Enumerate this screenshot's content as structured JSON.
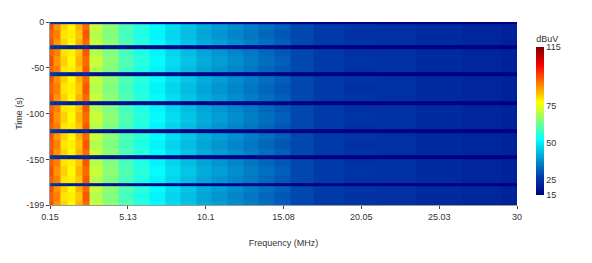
{
  "chart_data": {
    "type": "heatmap",
    "x_label": "Frequency (MHz)",
    "y_label": "Time (s)",
    "color": "Jet",
    "x": [
      0.15,
      0.6,
      1.0,
      1.5,
      2.0,
      2.4,
      3,
      4,
      5,
      6,
      7,
      8,
      9,
      10,
      11,
      12,
      13,
      14,
      15,
      16,
      18,
      20,
      22,
      25,
      28,
      30
    ],
    "y": [
      0,
      -4,
      -14,
      -23,
      -27,
      -31,
      -43,
      -53,
      -57,
      -61,
      -73,
      -84,
      -88,
      -92,
      -104,
      -115,
      -119,
      -123,
      -134,
      -143,
      -147,
      -151,
      -163,
      -173,
      -177,
      -181,
      -190,
      -199
    ],
    "z": [
      [
        28,
        25,
        23,
        21,
        22,
        24,
        19,
        18,
        18,
        17,
        17,
        17,
        16,
        16,
        16,
        16,
        16,
        16,
        16,
        15,
        15,
        15,
        15,
        15,
        15,
        15
      ],
      [
        95,
        88,
        82,
        78,
        85,
        92,
        72,
        66,
        60,
        56,
        52,
        48,
        45,
        42,
        40,
        38,
        36,
        34,
        32,
        29,
        27,
        26,
        25,
        24,
        23,
        22
      ],
      [
        93,
        90,
        80,
        79,
        83,
        94,
        70,
        65,
        59,
        55,
        51,
        47,
        44,
        41,
        39,
        37,
        35,
        33,
        31,
        29,
        27,
        25,
        25,
        24,
        23,
        22
      ],
      [
        95,
        88,
        82,
        78,
        85,
        92,
        72,
        66,
        60,
        56,
        52,
        48,
        45,
        42,
        40,
        38,
        36,
        34,
        32,
        29,
        27,
        26,
        25,
        24,
        23,
        22
      ],
      [
        28,
        25,
        23,
        21,
        22,
        24,
        19,
        18,
        18,
        17,
        17,
        17,
        16,
        16,
        16,
        16,
        16,
        16,
        16,
        15,
        15,
        15,
        15,
        15,
        15,
        15
      ],
      [
        93,
        90,
        80,
        79,
        83,
        94,
        70,
        65,
        59,
        55,
        51,
        47,
        44,
        41,
        39,
        37,
        35,
        33,
        31,
        29,
        27,
        25,
        25,
        24,
        23,
        22
      ],
      [
        95,
        88,
        82,
        78,
        85,
        92,
        72,
        66,
        60,
        56,
        52,
        48,
        45,
        42,
        40,
        38,
        36,
        34,
        32,
        29,
        27,
        26,
        25,
        24,
        23,
        22
      ],
      [
        93,
        90,
        80,
        79,
        83,
        94,
        70,
        65,
        59,
        55,
        51,
        47,
        44,
        41,
        39,
        37,
        35,
        33,
        31,
        29,
        27,
        25,
        25,
        24,
        23,
        22
      ],
      [
        28,
        25,
        23,
        21,
        22,
        24,
        19,
        18,
        18,
        17,
        17,
        17,
        16,
        16,
        16,
        16,
        16,
        16,
        16,
        15,
        15,
        15,
        15,
        15,
        15,
        15
      ],
      [
        95,
        88,
        82,
        78,
        85,
        92,
        72,
        66,
        60,
        56,
        52,
        48,
        45,
        42,
        40,
        38,
        36,
        34,
        32,
        29,
        27,
        26,
        25,
        24,
        23,
        22
      ],
      [
        93,
        90,
        80,
        79,
        83,
        94,
        70,
        65,
        59,
        55,
        51,
        47,
        44,
        41,
        39,
        37,
        35,
        33,
        31,
        29,
        27,
        25,
        25,
        24,
        23,
        22
      ],
      [
        95,
        88,
        82,
        78,
        85,
        92,
        72,
        66,
        60,
        56,
        52,
        48,
        45,
        42,
        40,
        38,
        36,
        34,
        32,
        29,
        27,
        26,
        25,
        24,
        23,
        22
      ],
      [
        28,
        25,
        23,
        21,
        22,
        24,
        19,
        18,
        18,
        17,
        17,
        17,
        16,
        16,
        16,
        16,
        16,
        16,
        16,
        15,
        15,
        15,
        15,
        15,
        15,
        15
      ],
      [
        93,
        90,
        80,
        79,
        83,
        94,
        70,
        65,
        59,
        55,
        51,
        47,
        44,
        41,
        39,
        37,
        35,
        33,
        31,
        29,
        27,
        25,
        25,
        24,
        23,
        22
      ],
      [
        95,
        88,
        82,
        78,
        85,
        92,
        72,
        66,
        60,
        56,
        52,
        48,
        45,
        42,
        40,
        38,
        36,
        34,
        32,
        29,
        27,
        26,
        25,
        24,
        23,
        22
      ],
      [
        93,
        90,
        80,
        79,
        83,
        94,
        70,
        65,
        59,
        55,
        51,
        47,
        44,
        41,
        39,
        37,
        35,
        33,
        31,
        29,
        27,
        25,
        25,
        24,
        23,
        22
      ],
      [
        28,
        25,
        23,
        21,
        22,
        24,
        19,
        18,
        18,
        17,
        17,
        17,
        16,
        16,
        16,
        16,
        16,
        16,
        16,
        15,
        15,
        15,
        15,
        15,
        15,
        15
      ],
      [
        95,
        88,
        82,
        78,
        85,
        92,
        72,
        66,
        60,
        56,
        52,
        48,
        45,
        42,
        40,
        38,
        36,
        34,
        32,
        29,
        27,
        26,
        25,
        24,
        23,
        22
      ],
      [
        93,
        90,
        80,
        79,
        83,
        94,
        70,
        65,
        59,
        55,
        51,
        47,
        44,
        41,
        39,
        37,
        35,
        33,
        31,
        29,
        27,
        25,
        25,
        24,
        23,
        22
      ],
      [
        95,
        88,
        82,
        78,
        85,
        92,
        72,
        66,
        60,
        56,
        52,
        48,
        45,
        42,
        40,
        38,
        36,
        34,
        32,
        29,
        27,
        26,
        25,
        24,
        23,
        22
      ],
      [
        28,
        25,
        23,
        21,
        22,
        24,
        19,
        18,
        18,
        17,
        17,
        17,
        16,
        16,
        16,
        16,
        16,
        16,
        16,
        15,
        15,
        15,
        15,
        15,
        15,
        15
      ],
      [
        93,
        90,
        80,
        79,
        83,
        94,
        70,
        65,
        59,
        55,
        51,
        47,
        44,
        41,
        39,
        37,
        35,
        33,
        31,
        29,
        27,
        25,
        25,
        24,
        23,
        22
      ],
      [
        95,
        88,
        82,
        78,
        85,
        92,
        72,
        66,
        60,
        56,
        52,
        48,
        45,
        42,
        40,
        38,
        36,
        34,
        32,
        29,
        27,
        26,
        25,
        24,
        23,
        22
      ],
      [
        93,
        90,
        80,
        79,
        83,
        94,
        70,
        65,
        59,
        55,
        51,
        47,
        44,
        41,
        39,
        37,
        35,
        33,
        31,
        29,
        27,
        25,
        25,
        24,
        23,
        22
      ],
      [
        28,
        25,
        23,
        21,
        22,
        24,
        19,
        18,
        18,
        17,
        17,
        17,
        16,
        16,
        16,
        16,
        16,
        16,
        16,
        15,
        15,
        15,
        15,
        15,
        15,
        15
      ],
      [
        95,
        88,
        82,
        78,
        85,
        92,
        72,
        66,
        60,
        56,
        52,
        48,
        45,
        42,
        40,
        38,
        36,
        34,
        32,
        29,
        27,
        26,
        25,
        24,
        23,
        22
      ],
      [
        93,
        90,
        80,
        79,
        83,
        94,
        70,
        65,
        59,
        55,
        51,
        47,
        44,
        41,
        39,
        37,
        35,
        33,
        31,
        29,
        27,
        25,
        25,
        24,
        23,
        22
      ],
      [
        95,
        88,
        82,
        78,
        85,
        92,
        72,
        66,
        60,
        56,
        52,
        48,
        45,
        42,
        40,
        38,
        36,
        34,
        32,
        29,
        27,
        26,
        25,
        24,
        23,
        22
      ]
    ],
    "xlim": [
      0.15,
      30
    ],
    "xticks": [
      0.15,
      5.13,
      10.1,
      15.08,
      20.05,
      25.03,
      30
    ],
    "ylim": [
      -199,
      0
    ],
    "yticks": [
      0,
      -50,
      -100,
      -150,
      -199
    ],
    "colorbar_title": "dBuV",
    "zlim": [
      15,
      115
    ],
    "zticks": [
      15,
      25,
      50,
      75,
      115
    ]
  }
}
